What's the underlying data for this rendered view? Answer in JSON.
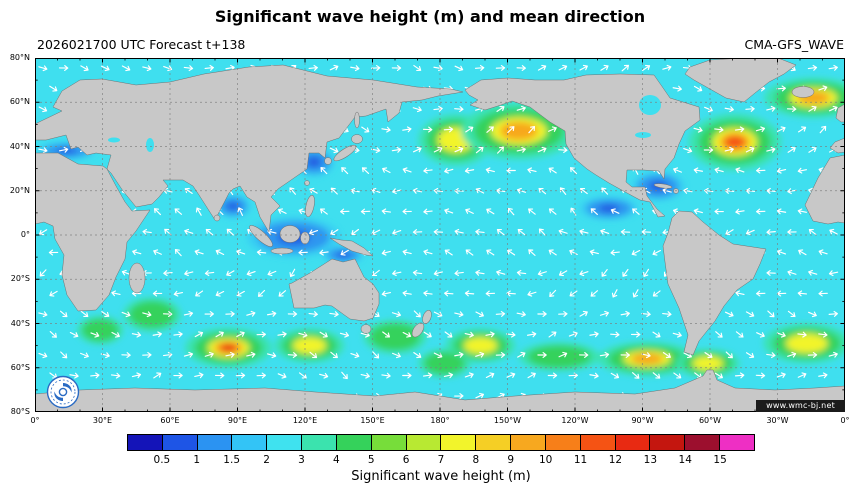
{
  "title": "Significant wave height (m) and mean direction",
  "subtitle_left": "2026021700 UTC Forecast t+138",
  "subtitle_right": "CMA-GFS_WAVE",
  "watermark": "www.wmc-bj.net",
  "axes": {
    "lon_labels": [
      "0°",
      "30°E",
      "60°E",
      "90°E",
      "120°E",
      "150°E",
      "180°",
      "150°W",
      "120°W",
      "90°W",
      "60°W",
      "30°W",
      "0°"
    ],
    "lat_labels": [
      "80°N",
      "60°N",
      "40°N",
      "20°N",
      "0°",
      "20°S",
      "40°S",
      "60°S",
      "80°S"
    ]
  },
  "colorbar": {
    "caption": "Significant wave height (m)",
    "tick_labels": [
      "0.5",
      "1",
      "1.5",
      "2",
      "3",
      "4",
      "5",
      "6",
      "7",
      "8",
      "9",
      "10",
      "11",
      "12",
      "13",
      "14",
      "15"
    ],
    "colors": [
      "#1414b8",
      "#1e55e6",
      "#2b93f2",
      "#33c4f6",
      "#3fe2ef",
      "#3be3ae",
      "#35d25b",
      "#77dd3a",
      "#b8e932",
      "#f2f42b",
      "#f5cf25",
      "#f7a81f",
      "#f77f19",
      "#f55314",
      "#e82a12",
      "#c4160f",
      "#9c0f2e",
      "#ee2fc4"
    ]
  },
  "map": {
    "ocean_color": "#3fdfef",
    "land_color": "#c8c8c8",
    "coast_color": "#707070",
    "grid_color": "#7d7d7d",
    "arrow_color": "#ffffff"
  },
  "chart_data": {
    "type": "heatmap",
    "units": "m",
    "background_ocean_m": 2.5,
    "colorbar_ticks": [
      0.5,
      1,
      1.5,
      2,
      3,
      4,
      5,
      6,
      7,
      8,
      9,
      10,
      11,
      12,
      13,
      14,
      15
    ],
    "wave_systems": [
      {
        "region": "Northwest Pacific near dateline",
        "lon_e": 187,
        "lat": 43,
        "rx_deg": 13,
        "ry_deg": 9,
        "max_m": 7
      },
      {
        "region": "Gulf of Alaska North Pacific",
        "lon_e": 215,
        "lat": 47,
        "rx_deg": 20,
        "ry_deg": 10,
        "max_m": 9
      },
      {
        "region": "Northwest Atlantic",
        "lon_e": 311,
        "lat": 42,
        "rx_deg": 16,
        "ry_deg": 10,
        "max_m": 11
      },
      {
        "region": "Northeast Atlantic",
        "lon_e": 346,
        "lat": 62,
        "rx_deg": 17,
        "ry_deg": 7,
        "max_m": 9
      },
      {
        "region": "South Indian Ocean",
        "lon_e": 86,
        "lat": -51,
        "rx_deg": 15,
        "ry_deg": 7,
        "max_m": 13
      },
      {
        "region": "South of Australia",
        "lon_e": 122,
        "lat": -50,
        "rx_deg": 12,
        "ry_deg": 6,
        "max_m": 6
      },
      {
        "region": "South Tasman Sea",
        "lon_e": 160,
        "lat": -46,
        "rx_deg": 11,
        "ry_deg": 6,
        "max_m": 5
      },
      {
        "region": "South Pacific",
        "lon_e": 198,
        "lat": -50,
        "rx_deg": 12,
        "ry_deg": 6,
        "max_m": 7
      },
      {
        "region": "Central South Pacific",
        "lon_e": 233,
        "lat": -55,
        "rx_deg": 14,
        "ry_deg": 5,
        "max_m": 5
      },
      {
        "region": "Southeast Pacific",
        "lon_e": 272,
        "lat": -56,
        "rx_deg": 17,
        "ry_deg": 6,
        "max_m": 8
      },
      {
        "region": "Drake Passage",
        "lon_e": 299,
        "lat": -58,
        "rx_deg": 11,
        "ry_deg": 5,
        "max_m": 7
      },
      {
        "region": "South Atlantic",
        "lon_e": 343,
        "lat": -49,
        "rx_deg": 15,
        "ry_deg": 7,
        "max_m": 6
      },
      {
        "region": "Southwest Indian Ocean",
        "lon_e": 52,
        "lat": -36,
        "rx_deg": 10,
        "ry_deg": 6,
        "max_m": 5
      },
      {
        "region": "South of Africa",
        "lon_e": 29,
        "lat": -43,
        "rx_deg": 8,
        "ry_deg": 5,
        "max_m": 5
      },
      {
        "region": "South of New Zealand",
        "lon_e": 182,
        "lat": -58,
        "rx_deg": 9,
        "ry_deg": 5,
        "max_m": 5
      },
      {
        "region": "Indonesian seas",
        "lon_e": 115,
        "lat": -1,
        "rx_deg": 16,
        "ry_deg": 7,
        "max_m": 1.5
      },
      {
        "region": "East China Sea",
        "lon_e": 124,
        "lat": 33,
        "rx_deg": 7,
        "ry_deg": 5,
        "max_m": 1.5
      },
      {
        "region": "Gulf of Mexico Caribbean",
        "lon_e": 277,
        "lat": 22,
        "rx_deg": 9,
        "ry_deg": 5,
        "max_m": 1.5
      },
      {
        "region": "Mediterranean Sea",
        "lon_e": 14,
        "lat": 38,
        "rx_deg": 10,
        "ry_deg": 3,
        "max_m": 1.5
      },
      {
        "region": "West of Mexico",
        "lon_e": 255,
        "lat": 12,
        "rx_deg": 10,
        "ry_deg": 4,
        "max_m": 1.5
      },
      {
        "region": "Arafura Sea",
        "lon_e": 137,
        "lat": -9,
        "rx_deg": 7,
        "ry_deg": 3,
        "max_m": 1.5
      },
      {
        "region": "Bay of Bengal",
        "lon_e": 88,
        "lat": 13,
        "rx_deg": 6,
        "ry_deg": 4,
        "max_m": 1.5
      }
    ]
  }
}
